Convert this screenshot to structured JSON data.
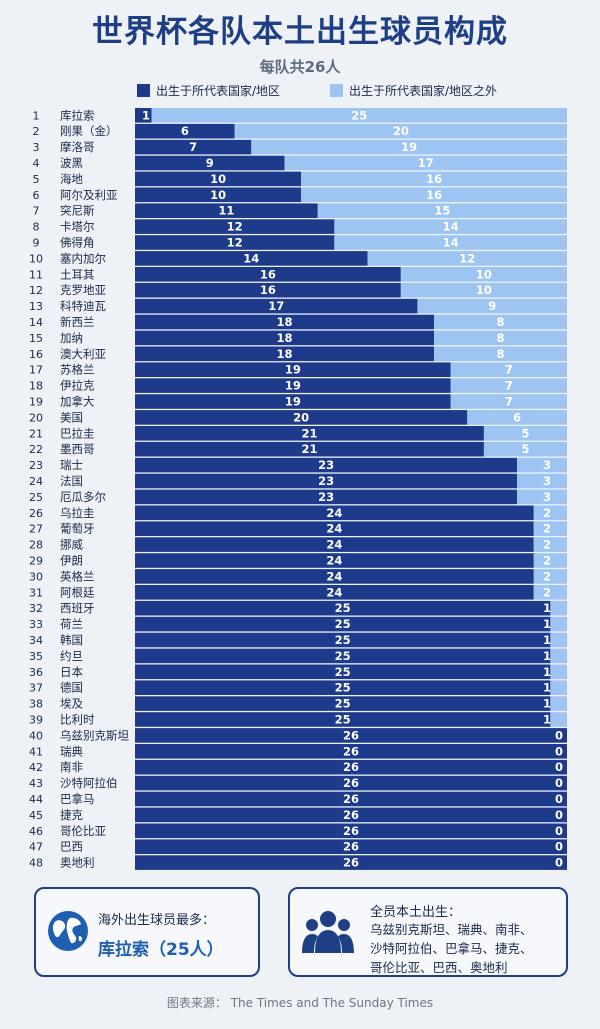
{
  "header": {
    "title": "世界杯各队本土出生球员构成",
    "subtitle": "每队共26人"
  },
  "legend": {
    "domestic_label": "出生于所代表国家/地区",
    "foreign_label": "出生于所代表国家/地区之外",
    "domestic_color": "#1e3a8a",
    "foreign_color": "#9ec5f2"
  },
  "chart_data": {
    "type": "bar",
    "orientation": "horizontal",
    "stacked": true,
    "total": 26,
    "categories": [
      "库拉索",
      "刚果（金）",
      "摩洛哥",
      "波黑",
      "海地",
      "阿尔及利亚",
      "突尼斯",
      "卡塔尔",
      "佛得角",
      "塞内加尔",
      "土耳其",
      "克罗地亚",
      "科特迪瓦",
      "新西兰",
      "加纳",
      "澳大利亚",
      "苏格兰",
      "伊拉克",
      "加拿大",
      "美国",
      "巴拉圭",
      "墨西哥",
      "瑞士",
      "法国",
      "厄瓜多尔",
      "乌拉圭",
      "葡萄牙",
      "挪威",
      "伊朗",
      "英格兰",
      "阿根廷",
      "西班牙",
      "荷兰",
      "韩国",
      "约旦",
      "日本",
      "德国",
      "埃及",
      "比利时",
      "乌兹别克斯坦",
      "瑞典",
      "南非",
      "沙特阿拉伯",
      "巴拿马",
      "捷克",
      "哥伦比亚",
      "巴西",
      "奥地利"
    ],
    "ranks": [
      "1",
      "2",
      "3",
      "4",
      "5",
      "6",
      "7",
      "8",
      "9",
      "10",
      "11",
      "12",
      "13",
      "14",
      "15",
      "16",
      "17",
      "18",
      "19",
      "20",
      "21",
      "22",
      "23",
      "24",
      "25",
      "26",
      "27",
      "28",
      "29",
      "30",
      "31",
      "32",
      "33",
      "34",
      "35",
      "36",
      "37",
      "38",
      "39",
      "40",
      "41",
      "42",
      "43",
      "44",
      "45",
      "46",
      "47",
      "48"
    ],
    "series": [
      {
        "name": "出生于所代表国家/地区",
        "values": [
          1,
          6,
          7,
          9,
          10,
          10,
          11,
          12,
          12,
          14,
          16,
          16,
          17,
          18,
          18,
          18,
          19,
          19,
          19,
          20,
          21,
          21,
          23,
          23,
          23,
          24,
          24,
          24,
          24,
          24,
          24,
          25,
          25,
          25,
          25,
          25,
          25,
          25,
          25,
          26,
          26,
          26,
          26,
          26,
          26,
          26,
          26,
          26
        ]
      },
      {
        "name": "出生于所代表国家/地区之外",
        "values": [
          25,
          20,
          19,
          17,
          16,
          16,
          15,
          14,
          14,
          12,
          10,
          10,
          9,
          8,
          8,
          8,
          7,
          7,
          7,
          6,
          5,
          5,
          3,
          3,
          3,
          2,
          2,
          2,
          2,
          2,
          2,
          1,
          1,
          1,
          1,
          1,
          1,
          1,
          1,
          0,
          0,
          0,
          0,
          0,
          0,
          0,
          0,
          0
        ]
      }
    ],
    "xlim": [
      0,
      26
    ]
  },
  "box_left": {
    "label": "海外出生球员最多：",
    "value": "库拉索（25人）",
    "icon": "globe-icon"
  },
  "box_right": {
    "label": "全员本土出生：",
    "lines": [
      "乌兹别克斯坦、瑞典、南非、",
      "沙特阿拉伯、巴拿马、捷克、",
      "哥伦比亚、巴西、奥地利"
    ],
    "icon": "people-icon"
  },
  "footer": {
    "source": "图表来源：  The Times and The Sunday Times"
  }
}
